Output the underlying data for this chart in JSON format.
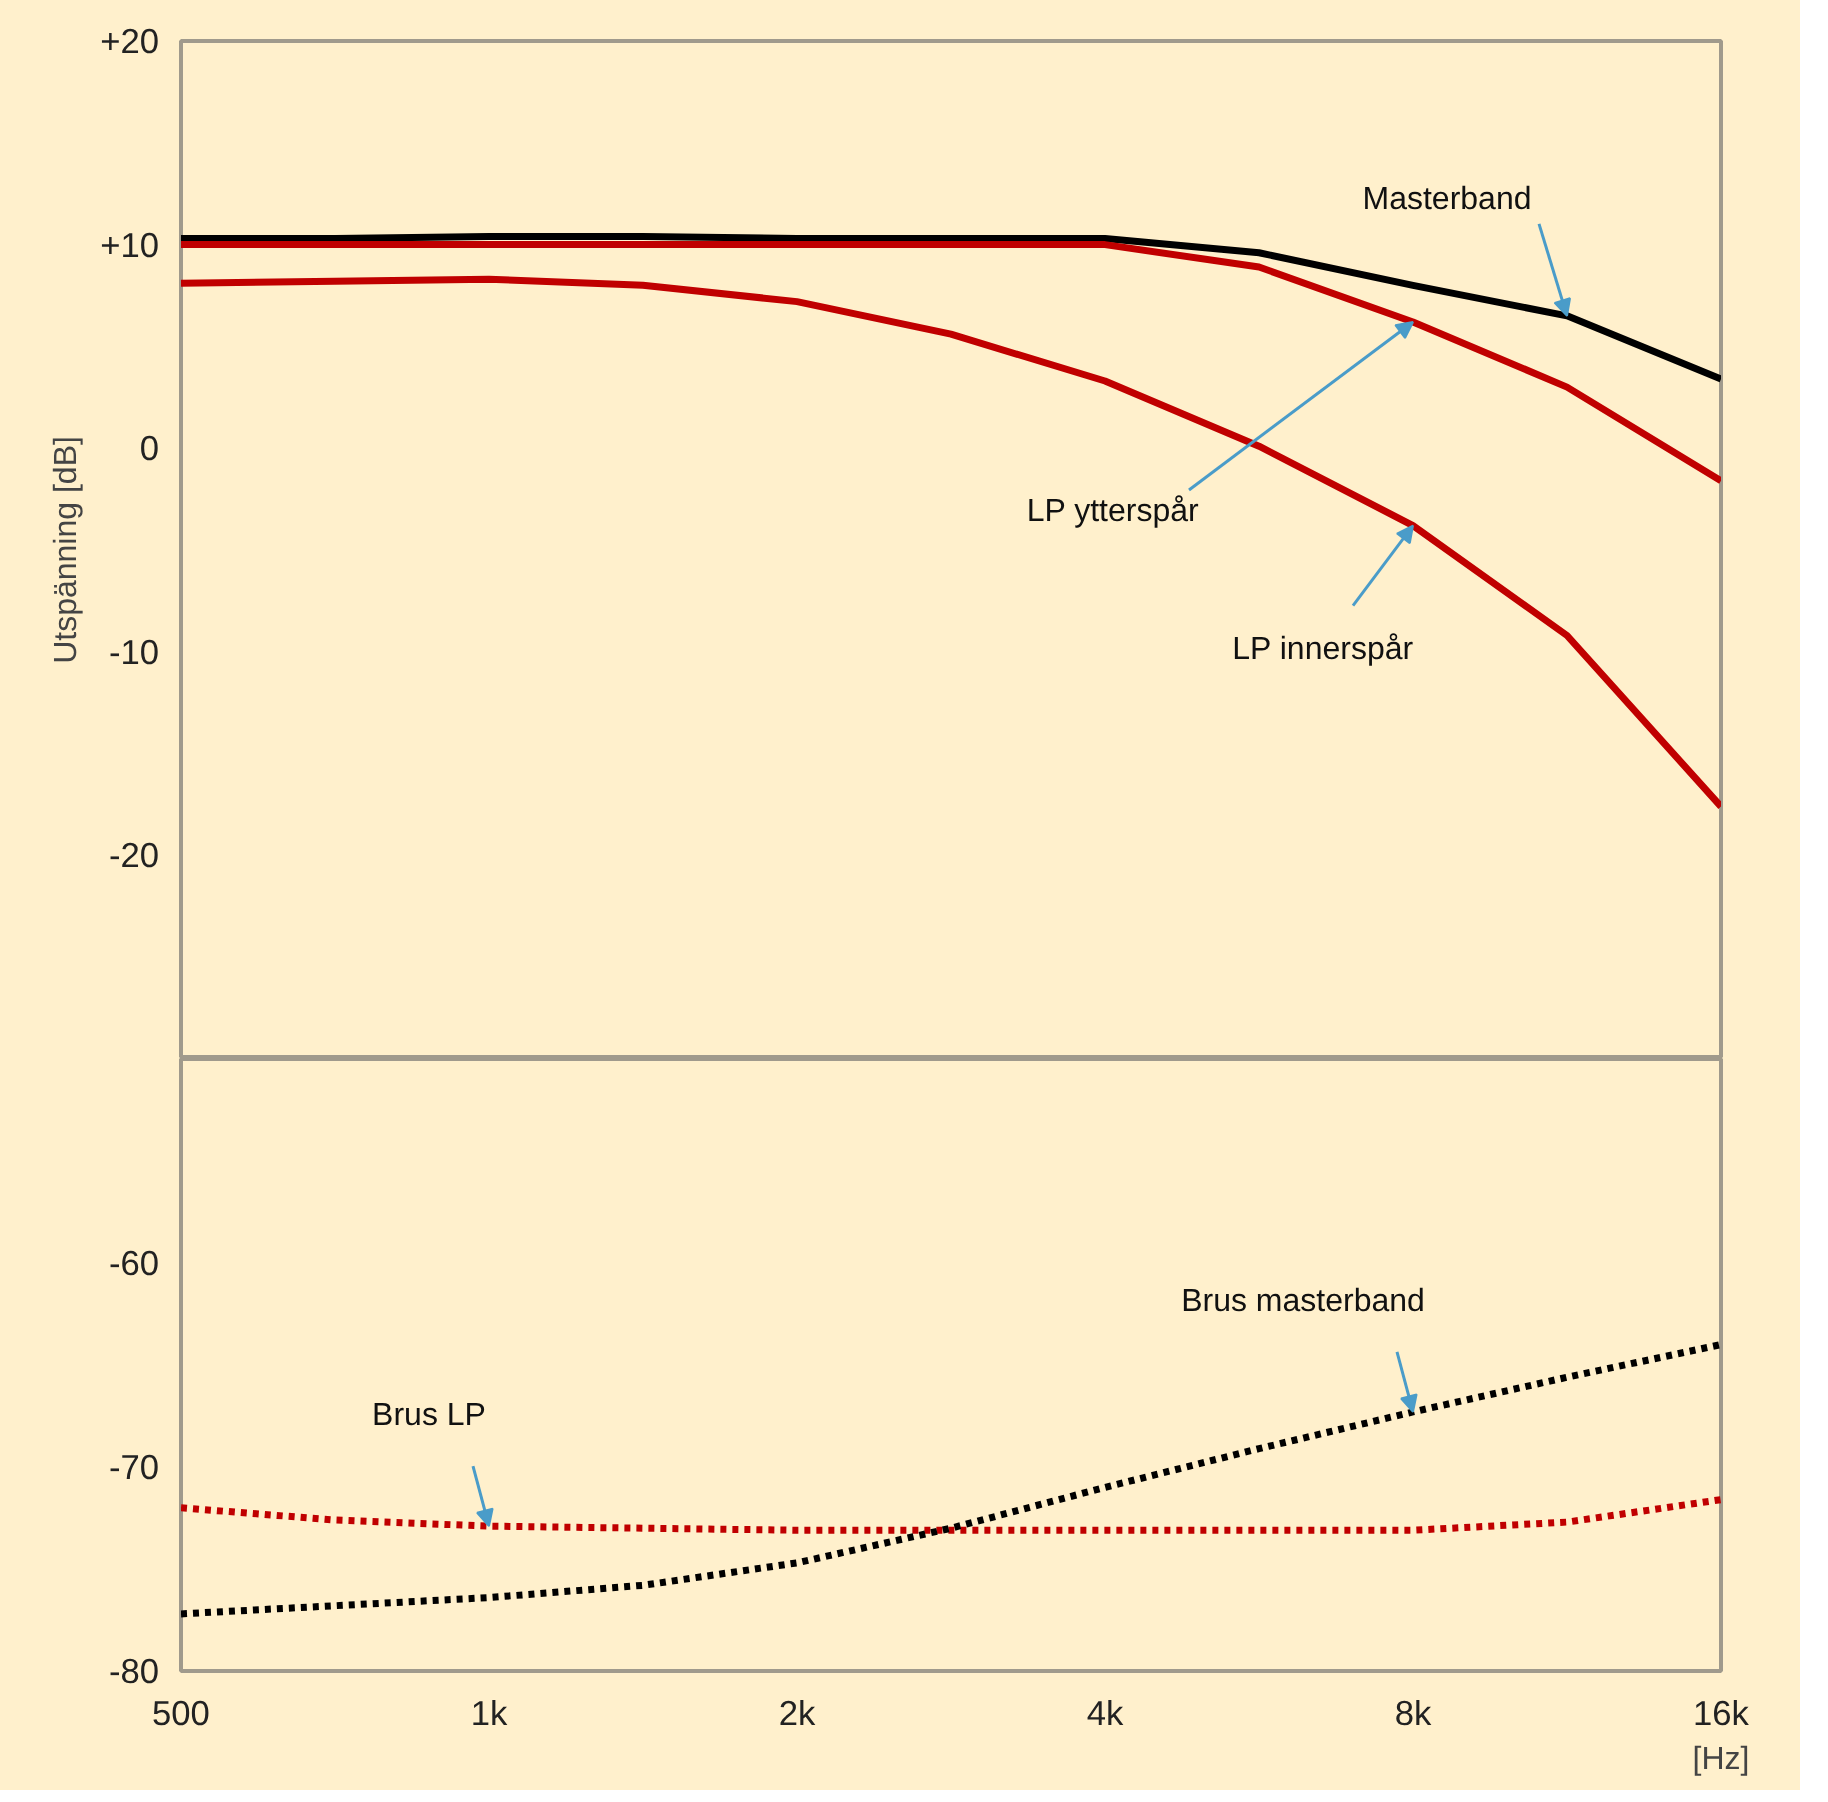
{
  "chart_data": [
    {
      "type": "line",
      "ylabel": "Utspänning [dB]",
      "log": "x",
      "grid": false,
      "tick_labels": "y",
      "x": [
        500,
        707,
        1000,
        1414,
        2000,
        2828,
        4000,
        5657,
        8000,
        11314,
        16000
      ],
      "xlim": [
        500,
        16000
      ],
      "ylim": [
        -30,
        20
      ],
      "yticks": [
        {
          "value": 20,
          "label": "+20"
        },
        {
          "value": 10,
          "label": "+10"
        },
        0,
        -10,
        -20
      ],
      "series": [
        {
          "color": "#000000",
          "line_style": "solid",
          "values": [
            10.3,
            10.3,
            10.4,
            10.4,
            10.3,
            10.3,
            10.3,
            9.6,
            8.0,
            6.5,
            3.4
          ]
        },
        {
          "color": "#c00000",
          "line_style": "solid",
          "values": [
            10.0,
            10.0,
            10.0,
            10.0,
            10.0,
            10.0,
            10.0,
            8.9,
            6.2,
            3.0,
            -1.6
          ]
        },
        {
          "color": "#c00000",
          "line_style": "solid",
          "values": [
            8.1,
            8.2,
            8.3,
            8.0,
            7.2,
            5.6,
            3.3,
            0.1,
            -3.8,
            -9.2,
            -17.6
          ]
        }
      ],
      "annotations": [
        {
          "text": "Masterband",
          "x": 11314,
          "y": 6.5
        },
        {
          "text": "LP ytterspår",
          "x": 8000,
          "y": 6.2
        },
        {
          "text": "LP innerspår",
          "x": 8000,
          "y": -3.8
        }
      ]
    },
    {
      "type": "line",
      "xlabel": "[Hz]",
      "log": "x",
      "grid": false,
      "x": [
        500,
        707,
        1000,
        1414,
        2000,
        2828,
        4000,
        5657,
        8000,
        11314,
        16000
      ],
      "xlim": [
        500,
        16000
      ],
      "xticks": [
        500,
        {
          "value": 1000,
          "label": "1k"
        },
        {
          "value": 2000,
          "label": "2k"
        },
        {
          "value": 4000,
          "label": "4k"
        },
        {
          "value": 8000,
          "label": "8k"
        },
        {
          "value": 16000,
          "label": "16k"
        }
      ],
      "ylim": [
        -80,
        -50
      ],
      "yticks": [
        -60,
        -70,
        -80
      ],
      "series": [
        {
          "color": "#c00000",
          "line_style": "dotted",
          "values": [
            -72.0,
            -72.6,
            -72.9,
            -73.0,
            -73.1,
            -73.1,
            -73.1,
            -73.1,
            -73.1,
            -72.7,
            -71.6
          ]
        },
        {
          "color": "#000000",
          "line_style": "dotted",
          "values": [
            -77.2,
            -76.8,
            -76.4,
            -75.8,
            -74.7,
            -73.0,
            -71.0,
            -69.1,
            -67.3,
            -65.6,
            -64.0
          ]
        }
      ],
      "annotations": [
        {
          "text": "Brus LP",
          "x": 1000,
          "y": -72.9
        },
        {
          "text": "Brus masterband",
          "x": 8000,
          "y": -67.3
        }
      ]
    }
  ]
}
